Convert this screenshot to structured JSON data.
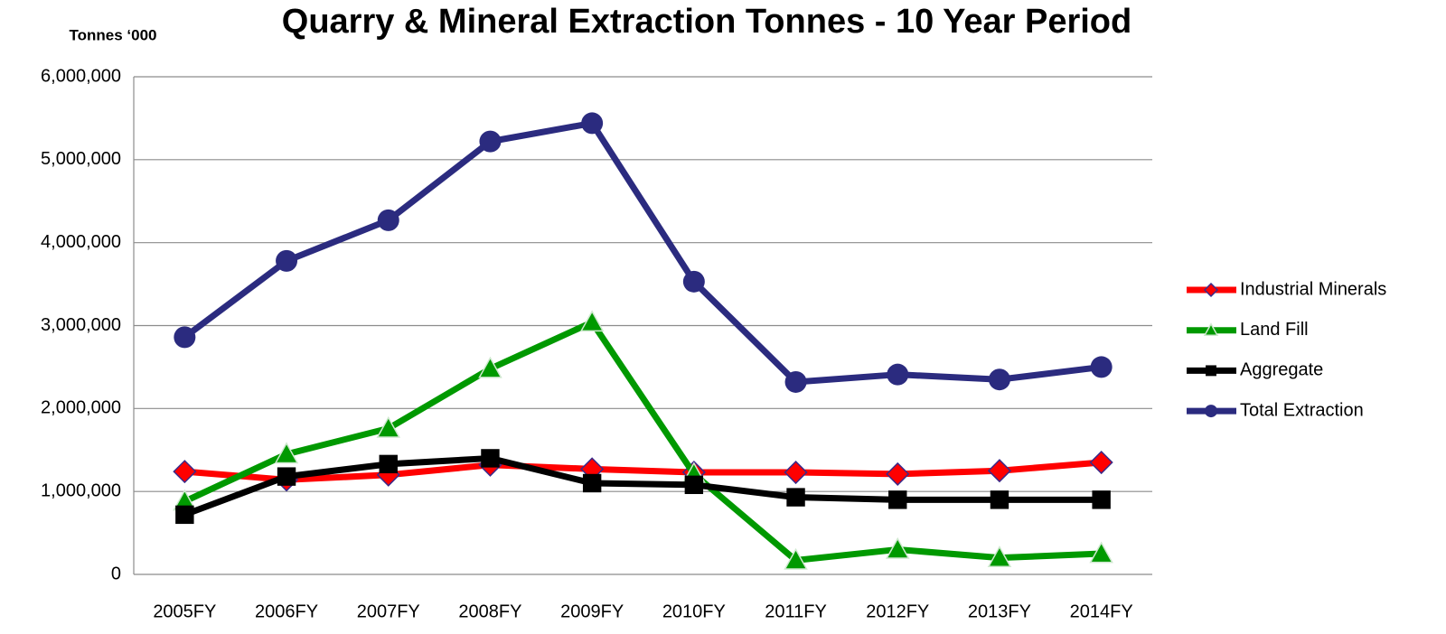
{
  "chart_data": {
    "type": "line",
    "title": "Quarry & Mineral Extraction Tonnes - 10 Year Period",
    "y_label": "Tonnes ‘000",
    "categories": [
      "2005FY",
      "2006FY",
      "2007FY",
      "2008FY",
      "2009FY",
      "2010FY",
      "2011FY",
      "2012FY",
      "2013FY",
      "2014FY"
    ],
    "series": [
      {
        "name": "Industrial Minerals",
        "color": "#ff0000",
        "marker": "diamond",
        "values": [
          1240000,
          1140000,
          1200000,
          1320000,
          1270000,
          1230000,
          1230000,
          1210000,
          1250000,
          1350000
        ]
      },
      {
        "name": "Land Fill",
        "color": "#009900",
        "marker": "triangle",
        "values": [
          880000,
          1450000,
          1760000,
          2480000,
          3040000,
          1210000,
          170000,
          300000,
          200000,
          250000
        ]
      },
      {
        "name": "Aggregate",
        "color": "#000000",
        "marker": "square",
        "values": [
          720000,
          1180000,
          1330000,
          1400000,
          1100000,
          1080000,
          930000,
          900000,
          900000,
          900000
        ]
      },
      {
        "name": "Total Extraction",
        "color": "#2b2b7f",
        "marker": "circle",
        "values": [
          2860000,
          3780000,
          4270000,
          5220000,
          5440000,
          3530000,
          2320000,
          2410000,
          2350000,
          2500000
        ]
      }
    ],
    "ylim": [
      0,
      6000000
    ],
    "yticks": [
      0,
      {
        "value": 1000000,
        "label": "1,000,000"
      },
      {
        "value": 2000000,
        "label": "2,000,000"
      },
      {
        "value": 3000000,
        "label": "3,000,000"
      },
      {
        "value": 4000000,
        "label": "4,000,000"
      },
      {
        "value": 5000000,
        "label": "5,000,000"
      },
      {
        "value": 6000000,
        "label": "6,000,000"
      }
    ],
    "grid": true,
    "legend": "right"
  }
}
